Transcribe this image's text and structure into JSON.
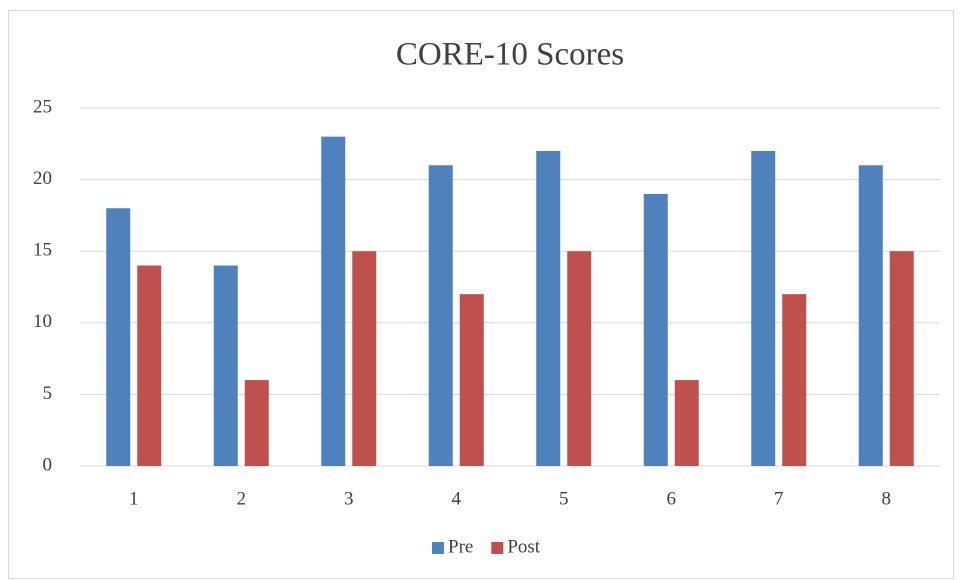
{
  "chart_data": {
    "type": "bar",
    "title": "CORE-10 Scores",
    "categories": [
      "1",
      "2",
      "3",
      "4",
      "5",
      "6",
      "7",
      "8"
    ],
    "series": [
      {
        "name": "Pre",
        "color": "#4f81bd",
        "values": [
          18,
          14,
          23,
          21,
          22,
          19,
          22,
          21
        ]
      },
      {
        "name": "Post",
        "color": "#c0504d",
        "values": [
          14,
          6,
          15,
          12,
          15,
          6,
          12,
          15
        ]
      }
    ],
    "ylim": [
      0,
      25
    ],
    "yticks": [
      0,
      5,
      10,
      15,
      20,
      25
    ],
    "grid": true,
    "legend": "bottom"
  }
}
